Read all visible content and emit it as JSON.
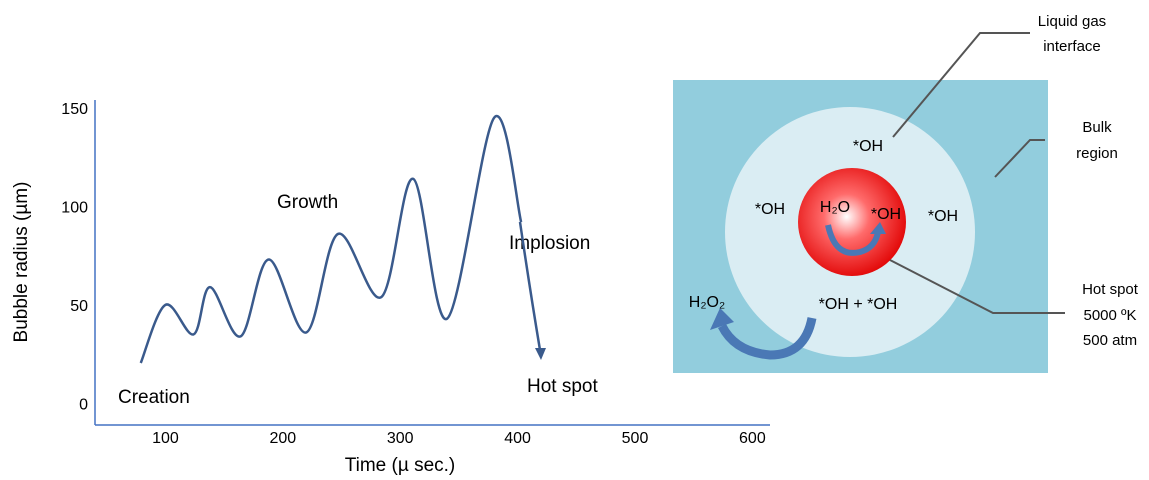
{
  "chart_data": {
    "type": "line",
    "xlabel": "Time (µ sec.)",
    "ylabel": "Bubble radius (µm)",
    "x": [
      79,
      100,
      124,
      138,
      164,
      188,
      220,
      247,
      284,
      311,
      340,
      380,
      403
    ],
    "series": [
      {
        "color": "#3a5a8c",
        "values": [
          21.5,
          51,
          36,
          60,
          35,
          74,
          37,
          87,
          55,
          115,
          44,
          146,
          93
        ]
      }
    ],
    "xlim": [
      40,
      615
    ],
    "ylim": [
      -10,
      155
    ],
    "xticks": [
      100,
      200,
      300,
      400,
      500,
      600
    ],
    "yticks": [
      0,
      50,
      100,
      150
    ],
    "annotations": [
      "Creation",
      "Growth",
      "Implosion",
      "Hot spot"
    ]
  },
  "diagram": {
    "radicals": [
      "*OH",
      "*OH",
      "*OH",
      "*OH"
    ],
    "water": "H₂O",
    "pair": "*OH + *OH",
    "peroxide": "H₂O₂",
    "callouts": {
      "interface": [
        "Liquid gas",
        "interface"
      ],
      "bulk": [
        "Bulk",
        "region"
      ],
      "hotspot": [
        "Hot spot",
        "5000 ºK",
        "500 atm"
      ]
    }
  }
}
